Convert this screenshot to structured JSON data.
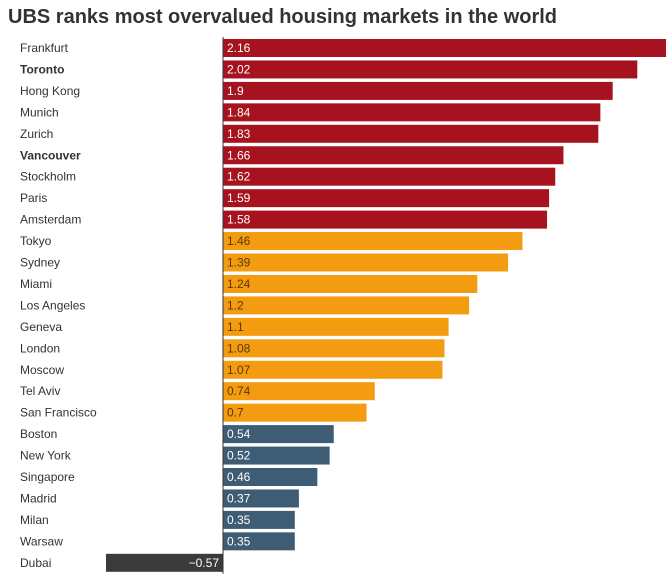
{
  "colors": {
    "red": "#a6131f",
    "orange": "#f39c12",
    "slate": "#3e5d75",
    "dark": "#3b3b3b"
  },
  "chart_data": {
    "type": "bar",
    "orientation": "horizontal",
    "title": "UBS ranks most overvalued housing markets in the world",
    "categories": [
      "Frankfurt",
      "Toronto",
      "Hong Kong",
      "Munich",
      "Zurich",
      "Vancouver",
      "Stockholm",
      "Paris",
      "Amsterdam",
      "Tokyo",
      "Sydney",
      "Miami",
      "Los Angeles",
      "Geneva",
      "London",
      "Moscow",
      "Tel Aviv",
      "San Francisco",
      "Boston",
      "New York",
      "Singapore",
      "Madrid",
      "Milan",
      "Warsaw",
      "Dubai"
    ],
    "values": [
      2.16,
      2.02,
      1.9,
      1.84,
      1.83,
      1.66,
      1.62,
      1.59,
      1.58,
      1.46,
      1.39,
      1.24,
      1.2,
      1.1,
      1.08,
      1.07,
      0.74,
      0.7,
      0.54,
      0.52,
      0.46,
      0.37,
      0.35,
      0.35,
      -0.57
    ],
    "value_labels": [
      "2.16",
      "2.02",
      "1.9",
      "1.84",
      "1.83",
      "1.66",
      "1.62",
      "1.59",
      "1.58",
      "1.46",
      "1.39",
      "1.24",
      "1.2",
      "1.1",
      "1.08",
      "1.07",
      "0.74",
      "0.7",
      "0.54",
      "0.52",
      "0.46",
      "0.37",
      "0.35",
      "0.35",
      "−0.57"
    ],
    "bar_colors": [
      "red",
      "red",
      "red",
      "red",
      "red",
      "red",
      "red",
      "red",
      "red",
      "orange",
      "orange",
      "orange",
      "orange",
      "orange",
      "orange",
      "orange",
      "orange",
      "orange",
      "slate",
      "slate",
      "slate",
      "slate",
      "slate",
      "slate",
      "dark"
    ],
    "bold_categories": [
      "Toronto",
      "Vancouver"
    ],
    "xlim": [
      -0.57,
      2.16
    ],
    "grid": false,
    "legend": "none"
  }
}
